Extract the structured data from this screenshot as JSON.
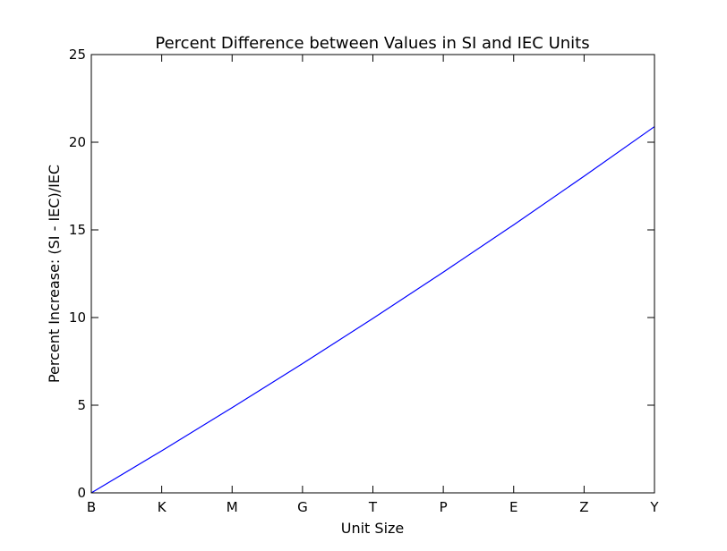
{
  "chart_data": {
    "type": "line",
    "title": "Percent Difference between Values in SI and IEC Units",
    "xlabel": "Unit Size",
    "ylabel": "Percent Increase: (SI - IEC)/IEC",
    "categories": [
      "B",
      "K",
      "M",
      "G",
      "T",
      "P",
      "E",
      "Z",
      "Y"
    ],
    "xlim": [
      "B",
      "Y"
    ],
    "ylim": [
      0,
      25
    ],
    "yticks": [
      0,
      5,
      10,
      15,
      20,
      25
    ],
    "grid": false,
    "legend": "none",
    "series": [
      {
        "color": "#0000ff",
        "values": [
          0,
          2.4,
          4.86,
          7.37,
          9.95,
          12.59,
          15.29,
          18.06,
          20.89
        ]
      }
    ]
  }
}
